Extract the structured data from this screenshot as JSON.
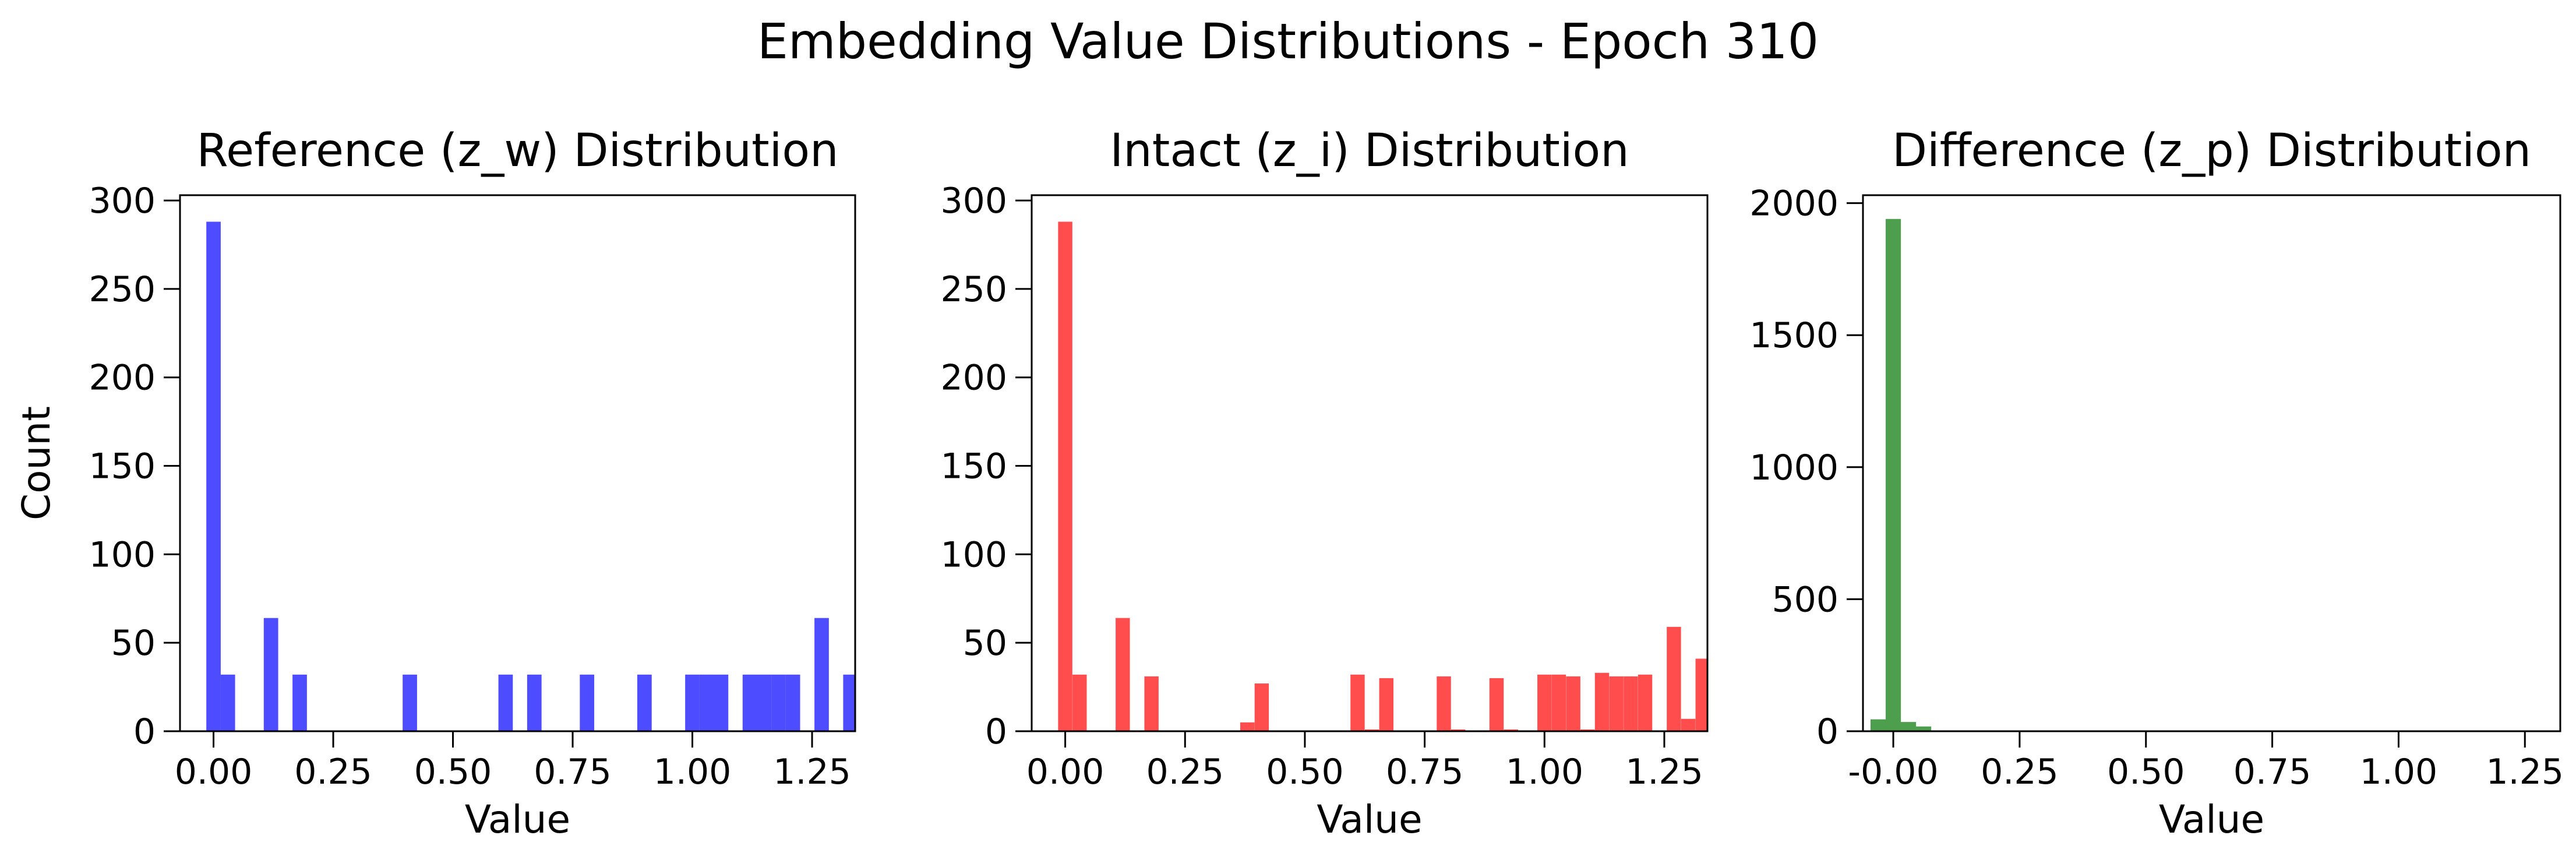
{
  "suptitle": "Embedding Value Distributions - Epoch 310",
  "chart_data": [
    {
      "type": "bar",
      "title": "Reference (z_w) Distribution",
      "xlabel": "Value",
      "ylabel": "Count",
      "color": "#4d4dff",
      "xlim": [
        -0.07,
        1.34
      ],
      "ylim": [
        0,
        303
      ],
      "xticks": [
        "0.00",
        "0.25",
        "0.50",
        "0.75",
        "1.00",
        "1.25"
      ],
      "yticks": [
        "0",
        "50",
        "100",
        "150",
        "200",
        "250",
        "300"
      ],
      "bin_width": 0.0301,
      "series": [
        {
          "values": [
            {
              "x": 0.0,
              "y": 288
            },
            {
              "x": 0.03,
              "y": 32
            },
            {
              "x": 0.12,
              "y": 64
            },
            {
              "x": 0.18,
              "y": 32
            },
            {
              "x": 0.41,
              "y": 32
            },
            {
              "x": 0.61,
              "y": 32
            },
            {
              "x": 0.67,
              "y": 32
            },
            {
              "x": 0.78,
              "y": 32
            },
            {
              "x": 0.9,
              "y": 32
            },
            {
              "x": 1.0,
              "y": 32
            },
            {
              "x": 1.03,
              "y": 32
            },
            {
              "x": 1.06,
              "y": 32
            },
            {
              "x": 1.12,
              "y": 32
            },
            {
              "x": 1.15,
              "y": 32
            },
            {
              "x": 1.18,
              "y": 32
            },
            {
              "x": 1.21,
              "y": 32
            },
            {
              "x": 1.27,
              "y": 64
            },
            {
              "x": 1.33,
              "y": 32
            }
          ]
        }
      ]
    },
    {
      "type": "bar",
      "title": "Intact (z_i) Distribution",
      "xlabel": "Value",
      "ylabel": "",
      "color": "#ff4d4d",
      "xlim": [
        -0.07,
        1.34
      ],
      "ylim": [
        0,
        303
      ],
      "xticks": [
        "0.00",
        "0.25",
        "0.50",
        "0.75",
        "1.00",
        "1.25"
      ],
      "yticks": [
        "0",
        "50",
        "100",
        "150",
        "200",
        "250",
        "300"
      ],
      "bin_width": 0.0297,
      "series": [
        {
          "values": [
            {
              "x": 0.0,
              "y": 288
            },
            {
              "x": 0.03,
              "y": 32
            },
            {
              "x": 0.12,
              "y": 64
            },
            {
              "x": 0.18,
              "y": 31
            },
            {
              "x": 0.38,
              "y": 5
            },
            {
              "x": 0.41,
              "y": 27
            },
            {
              "x": 0.61,
              "y": 32
            },
            {
              "x": 0.64,
              "y": 1
            },
            {
              "x": 0.67,
              "y": 30
            },
            {
              "x": 0.79,
              "y": 31
            },
            {
              "x": 0.82,
              "y": 1
            },
            {
              "x": 0.9,
              "y": 30
            },
            {
              "x": 0.93,
              "y": 1
            },
            {
              "x": 1.0,
              "y": 32
            },
            {
              "x": 1.03,
              "y": 32
            },
            {
              "x": 1.06,
              "y": 31
            },
            {
              "x": 1.09,
              "y": 1
            },
            {
              "x": 1.12,
              "y": 33
            },
            {
              "x": 1.15,
              "y": 31
            },
            {
              "x": 1.18,
              "y": 31
            },
            {
              "x": 1.21,
              "y": 32
            },
            {
              "x": 1.27,
              "y": 59
            },
            {
              "x": 1.3,
              "y": 7
            },
            {
              "x": 1.33,
              "y": 41
            }
          ]
        }
      ]
    },
    {
      "type": "bar",
      "title": "Difference (z_p) Distribution",
      "xlabel": "Value",
      "ylabel": "",
      "color": "#4d9e4d",
      "xlim": [
        -0.06,
        1.32
      ],
      "ylim": [
        0,
        2030
      ],
      "xticks": [
        "-0.00",
        "0.25",
        "0.50",
        "0.75",
        "1.00",
        "1.25"
      ],
      "yticks": [
        "0",
        "500",
        "1000",
        "1500",
        "2000"
      ],
      "bin_width": 0.0301,
      "series": [
        {
          "values": [
            {
              "x": -0.03,
              "y": 45
            },
            {
              "x": 0.0,
              "y": 1940
            },
            {
              "x": 0.03,
              "y": 35
            },
            {
              "x": 0.06,
              "y": 18
            },
            {
              "x": 0.09,
              "y": 3
            }
          ]
        }
      ]
    }
  ]
}
